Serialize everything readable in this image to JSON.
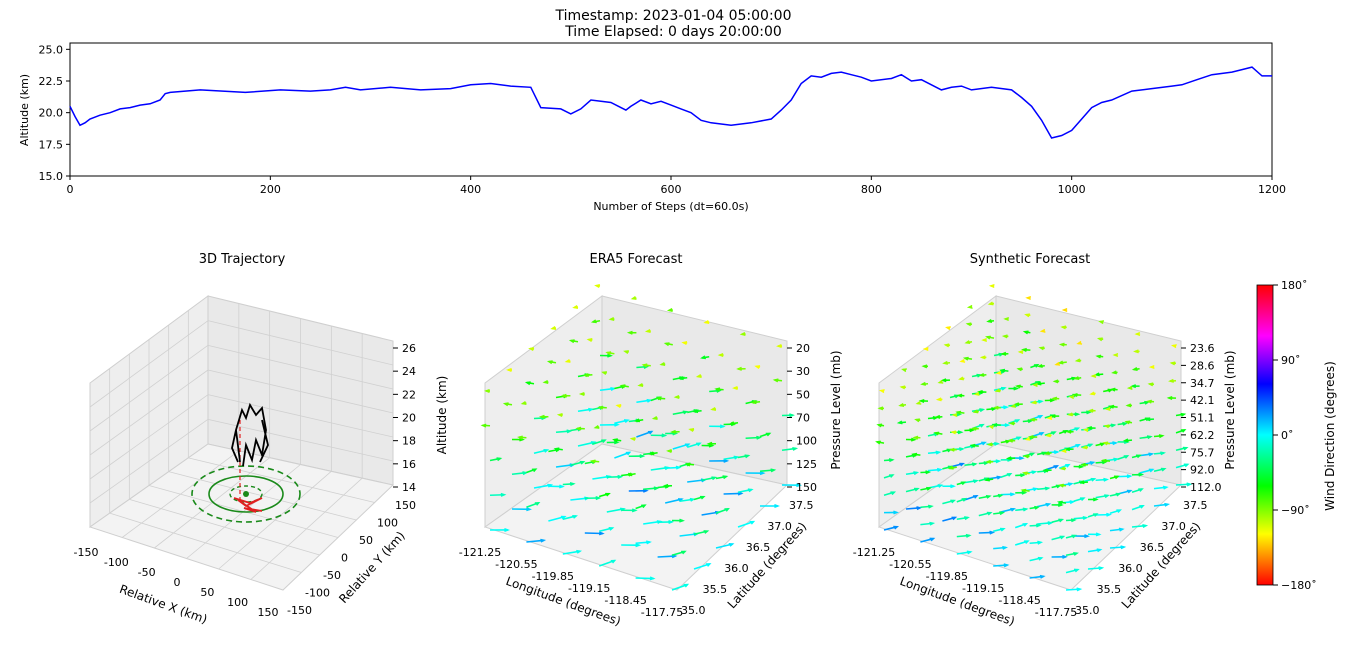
{
  "header": {
    "timestamp": "Timestamp: 2023-01-04 05:00:00",
    "elapsed": "Time Elapsed: 0 days 20:00:00"
  },
  "chart_data": [
    {
      "type": "line",
      "xlabel": "Number of Steps (dt=60.0s)",
      "ylabel": "Altitude (km)",
      "xlim": [
        0,
        1200
      ],
      "ylim": [
        15.0,
        25.5
      ],
      "xticks": [
        "0",
        "200",
        "400",
        "600",
        "800",
        "1000",
        "1200"
      ],
      "yticks": [
        "15.0",
        "17.5",
        "20.0",
        "22.5",
        "25.0"
      ],
      "color": "#0000ff",
      "series": [
        {
          "x": [
            0,
            5,
            10,
            15,
            20,
            30,
            40,
            50,
            60,
            70,
            80,
            90,
            95,
            100,
            130,
            175,
            210,
            240,
            260,
            275,
            290,
            320,
            350,
            380,
            400,
            420,
            440,
            460,
            470,
            490,
            500,
            510,
            520,
            530,
            540,
            550,
            555,
            560,
            570,
            580,
            590,
            600,
            610,
            620,
            630,
            640,
            660,
            680,
            700,
            710,
            720,
            730,
            740,
            750,
            760,
            770,
            780,
            790,
            800,
            820,
            830,
            840,
            850,
            860,
            870,
            880,
            890,
            900,
            920,
            940,
            950,
            960,
            970,
            980,
            990,
            1000,
            1010,
            1020,
            1030,
            1040,
            1060,
            1080,
            1100,
            1110,
            1125,
            1140,
            1160,
            1170,
            1180,
            1190,
            1200
          ],
          "y": [
            20.5,
            19.7,
            19.0,
            19.2,
            19.5,
            19.8,
            20.0,
            20.3,
            20.4,
            20.6,
            20.7,
            21.0,
            21.5,
            21.6,
            21.8,
            21.6,
            21.8,
            21.7,
            21.8,
            22.0,
            21.8,
            22.0,
            21.8,
            21.9,
            22.2,
            22.3,
            22.1,
            22.0,
            20.4,
            20.3,
            19.9,
            20.3,
            21.0,
            20.9,
            20.8,
            20.4,
            20.2,
            20.5,
            21.0,
            20.7,
            20.9,
            20.6,
            20.3,
            20.0,
            19.4,
            19.2,
            19.0,
            19.2,
            19.5,
            20.2,
            21.0,
            22.3,
            22.9,
            22.8,
            23.1,
            23.2,
            23.0,
            22.8,
            22.5,
            22.7,
            23.0,
            22.5,
            22.6,
            22.2,
            21.8,
            22.0,
            22.1,
            21.8,
            22.0,
            21.8,
            21.2,
            20.5,
            19.4,
            18.0,
            18.2,
            18.6,
            19.5,
            20.4,
            20.8,
            21.0,
            21.7,
            21.9,
            22.1,
            22.2,
            22.6,
            23.0,
            23.2,
            23.4,
            23.6,
            22.9,
            22.9
          ]
        }
      ]
    },
    {
      "type": "3d-trajectory",
      "title": "3D Trajectory",
      "xlabel": "Relative X (km)",
      "ylabel": "Relative Y (km)",
      "zlabel": "Altitude (km)",
      "xticks": [
        "-150",
        "-100",
        "-50",
        "0",
        "50",
        "100",
        "150"
      ],
      "yticks": [
        "-150",
        "-100",
        "-50",
        "0",
        "50",
        "100",
        "150"
      ],
      "zticks": [
        "14",
        "16",
        "18",
        "20",
        "22",
        "24",
        "26"
      ],
      "xlim": [
        -150,
        150
      ],
      "ylim": [
        -150,
        150
      ],
      "zlim": [
        14,
        26
      ]
    },
    {
      "type": "3d-quiver",
      "title": "ERA5 Forecast",
      "xlabel": "Longitude (degrees)",
      "ylabel": "Latitude (degrees)",
      "zlabel": "Pressure Level (mb)",
      "xticks": [
        "-121.25",
        "-120.55",
        "-119.85",
        "-119.15",
        "-118.45",
        "-117.75"
      ],
      "yticks": [
        "35.0",
        "35.5",
        "36.0",
        "36.5",
        "37.0",
        "37.5"
      ],
      "zticks": [
        "150",
        "125",
        "100",
        "70",
        "50",
        "30",
        "20"
      ]
    },
    {
      "type": "3d-quiver",
      "title": "Synthetic Forecast",
      "xlabel": "Longitude (degrees)",
      "ylabel": "Latitude (degrees)",
      "zlabel": "Pressure Level (mb)",
      "xticks": [
        "-121.25",
        "-120.55",
        "-119.85",
        "-119.15",
        "-118.45",
        "-117.75"
      ],
      "yticks": [
        "35.0",
        "35.5",
        "36.0",
        "36.5",
        "37.0",
        "37.5"
      ],
      "zticks": [
        "112.0",
        "92.0",
        "75.7",
        "62.2",
        "51.1",
        "42.1",
        "34.7",
        "28.6",
        "23.6"
      ]
    }
  ],
  "colorbar": {
    "label": "Wind Direction (degrees)",
    "ticks": [
      "180$^\\circ$",
      "90$^\\circ$",
      "0$^\\circ$",
      "-90$^\\circ$",
      "-180$^\\circ$"
    ],
    "tick_text": [
      "180˚",
      "90˚",
      "0˚",
      "−90˚",
      "−180˚"
    ],
    "range": [
      -180,
      180
    ]
  }
}
